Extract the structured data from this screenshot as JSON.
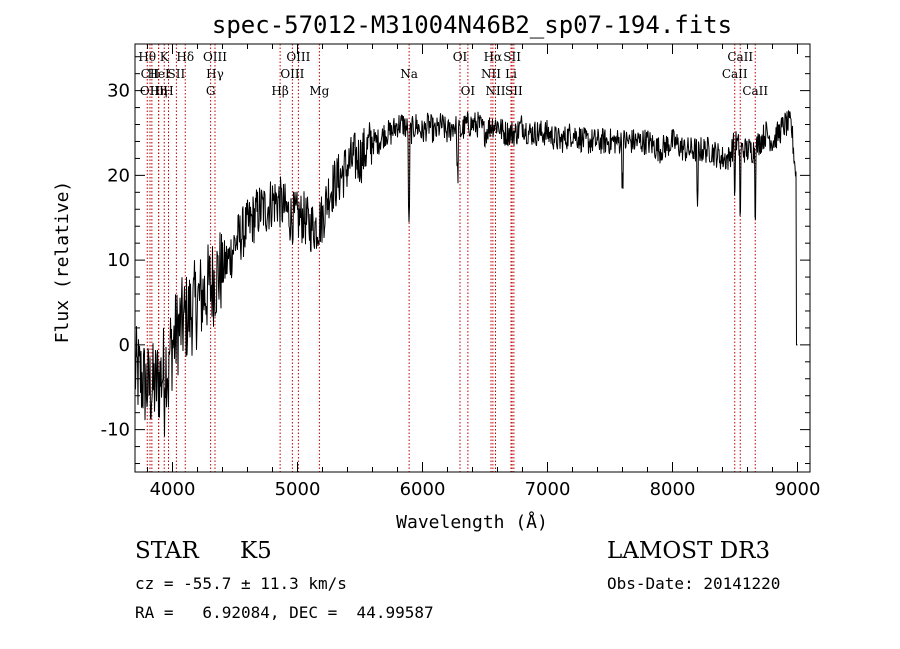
{
  "chart_data": {
    "type": "line",
    "title": "spec-57012-M31004N46B2_sp07-194.fits",
    "xlabel": "Wavelength (Å)",
    "ylabel": "Flux (relative)",
    "xlim": [
      3700,
      9100
    ],
    "ylim": [
      -15,
      35.5
    ],
    "xticks": [
      4000,
      5000,
      6000,
      7000,
      8000,
      9000
    ],
    "yticks": [
      -10,
      0,
      10,
      20,
      30
    ],
    "series": [
      {
        "name": "spectrum",
        "x": [
          3700,
          3750,
          3800,
          3850,
          3900,
          3950,
          4000,
          4050,
          4100,
          4150,
          4200,
          4250,
          4300,
          4350,
          4400,
          4450,
          4500,
          4550,
          4600,
          4650,
          4700,
          4750,
          4800,
          4850,
          4900,
          4950,
          5000,
          5050,
          5100,
          5150,
          5200,
          5250,
          5300,
          5350,
          5400,
          5450,
          5500,
          5550,
          5600,
          5650,
          5700,
          5750,
          5800,
          5850,
          5900,
          5950,
          6000,
          6050,
          6100,
          6150,
          6200,
          6250,
          6300,
          6350,
          6400,
          6450,
          6500,
          6550,
          6600,
          6650,
          6700,
          6750,
          6800,
          6850,
          6900,
          6950,
          7000,
          7100,
          7200,
          7300,
          7400,
          7500,
          7600,
          7700,
          7800,
          7900,
          8000,
          8100,
          8200,
          8300,
          8400,
          8450,
          8500,
          8550,
          8600,
          8650,
          8700,
          8750,
          8800,
          8850,
          8900,
          8950,
          9000
        ],
        "y": [
          -3,
          -4,
          -5,
          -5,
          -4,
          -2,
          0,
          2,
          3,
          4,
          5,
          6,
          7,
          8,
          9,
          10,
          12,
          13,
          14,
          15,
          16,
          16,
          17,
          17,
          16,
          15,
          15,
          15,
          14,
          14,
          15,
          18,
          19,
          20,
          21,
          22,
          22,
          23,
          24,
          24,
          25,
          25,
          26,
          26,
          25,
          26,
          25,
          26,
          25,
          26,
          25,
          26,
          25,
          26,
          26,
          26,
          25,
          26,
          26,
          25,
          25,
          25,
          26,
          25,
          25,
          25,
          25,
          24,
          25,
          24,
          24,
          24,
          24,
          24,
          24,
          23,
          24,
          23,
          23,
          23,
          22,
          22,
          24,
          23,
          23,
          23,
          24,
          25,
          24,
          25,
          26,
          26,
          18
        ]
      }
    ],
    "lines": [
      {
        "label": "Hθ",
        "x": 3798,
        "row": 0
      },
      {
        "label": "CII",
        "x": 3820,
        "row": 1
      },
      {
        "label": "OIII",
        "x": 3835,
        "row": 2
      },
      {
        "label": "HeI",
        "x": 3889,
        "row": 1
      },
      {
        "label": "Hη",
        "x": 3889,
        "row": 2
      },
      {
        "label": "K",
        "x": 3934,
        "row": 0
      },
      {
        "label": "H",
        "x": 3968,
        "row": 2
      },
      {
        "label": "SII",
        "x": 4031,
        "row": 1
      },
      {
        "label": "Hδ",
        "x": 4102,
        "row": 0
      },
      {
        "label": "OIII",
        "x": 4340,
        "row": 0
      },
      {
        "label": "Hγ",
        "x": 4340,
        "row": 1
      },
      {
        "label": "G",
        "x": 4305,
        "row": 2
      },
      {
        "label": "Hβ",
        "x": 4861,
        "row": 2
      },
      {
        "label": "OIII",
        "x": 5007,
        "row": 0
      },
      {
        "label": "OIII",
        "x": 4959,
        "row": 1
      },
      {
        "label": "Mg",
        "x": 5175,
        "row": 2
      },
      {
        "label": "Na",
        "x": 5893,
        "row": 1
      },
      {
        "label": "OI",
        "x": 6300,
        "row": 0
      },
      {
        "label": "OI",
        "x": 6363,
        "row": 2
      },
      {
        "label": "Hα",
        "x": 6563,
        "row": 0
      },
      {
        "label": "NII",
        "x": 6548,
        "row": 1
      },
      {
        "label": "NII",
        "x": 6584,
        "row": 2
      },
      {
        "label": "SII",
        "x": 6717,
        "row": 0
      },
      {
        "label": "Li",
        "x": 6708,
        "row": 1
      },
      {
        "label": "SII",
        "x": 6731,
        "row": 2
      },
      {
        "label": "CaII",
        "x": 8542,
        "row": 0
      },
      {
        "label": "CaII",
        "x": 8498,
        "row": 1
      },
      {
        "label": "CaII",
        "x": 8662,
        "row": 2
      }
    ]
  },
  "info": {
    "object_class": "STAR",
    "subclass": "K5",
    "survey": "LAMOST DR3",
    "cz": "cz = -55.7 ± 11.3 km/s",
    "obs_date": "Obs-Date: 20141220",
    "coords": "RA =   6.92084, DEC =  44.99587"
  }
}
